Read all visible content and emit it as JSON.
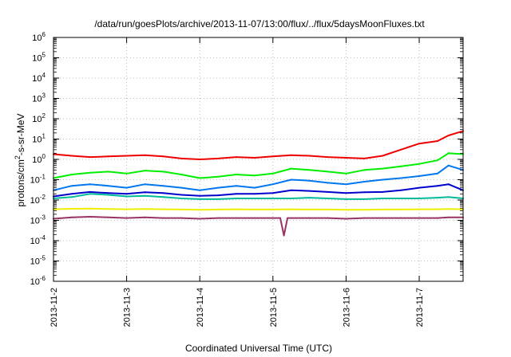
{
  "chart_data": {
    "type": "line",
    "title": "/data/run/goesPlots/archive/2013-11-07/13:00/flux/../flux/5daysMoonFluxes.txt",
    "xlabel": "Coordinated Universal Time (UTC)",
    "ylabel_parts": {
      "base": "protons/cm",
      "sup": "2",
      "rest": "-s-sr-MeV"
    },
    "yscale": "log",
    "ylim": [
      1e-06,
      1000000.0
    ],
    "xlim": [
      0,
      5.6
    ],
    "grid": true,
    "x_ticks": [
      {
        "x": 0,
        "label": "2013-11-2"
      },
      {
        "x": 1,
        "label": "2013-11-3"
      },
      {
        "x": 2,
        "label": "2013-11-4"
      },
      {
        "x": 3,
        "label": "2013-11-5"
      },
      {
        "x": 4,
        "label": "2013-11-6"
      },
      {
        "x": 5,
        "label": "2013-11-7"
      }
    ],
    "y_ticks": [
      {
        "exp": -6,
        "label_base": "10",
        "label_exp": "-6"
      },
      {
        "exp": -5,
        "label_base": "10",
        "label_exp": "-5"
      },
      {
        "exp": -4,
        "label_base": "10",
        "label_exp": "-4"
      },
      {
        "exp": -3,
        "label_base": "10",
        "label_exp": "-3"
      },
      {
        "exp": -2,
        "label_base": "10",
        "label_exp": "-2"
      },
      {
        "exp": -1,
        "label_base": "10",
        "label_exp": "-1"
      },
      {
        "exp": 0,
        "label_base": "10",
        "label_exp": "0"
      },
      {
        "exp": 1,
        "label_base": "10",
        "label_exp": "1"
      },
      {
        "exp": 2,
        "label_base": "10",
        "label_exp": "2"
      },
      {
        "exp": 3,
        "label_base": "10",
        "label_exp": "3"
      },
      {
        "exp": 4,
        "label_base": "10",
        "label_exp": "4"
      },
      {
        "exp": 5,
        "label_base": "10",
        "label_exp": "5"
      },
      {
        "exp": 6,
        "label_base": "10",
        "label_exp": "6"
      }
    ],
    "series": [
      {
        "color": "#ee0000",
        "x": [
          0,
          0.25,
          0.5,
          0.75,
          1.0,
          1.25,
          1.5,
          1.75,
          2.0,
          2.25,
          2.5,
          2.75,
          3.0,
          3.25,
          3.5,
          3.75,
          4.0,
          4.25,
          4.5,
          4.75,
          5.0,
          5.25,
          5.4,
          5.6
        ],
        "y": [
          1.8,
          1.5,
          1.3,
          1.4,
          1.5,
          1.6,
          1.4,
          1.1,
          1.0,
          1.1,
          1.3,
          1.2,
          1.4,
          1.6,
          1.5,
          1.3,
          1.2,
          1.1,
          1.5,
          3.0,
          6.0,
          8.0,
          15,
          25
        ]
      },
      {
        "color": "#00ee00",
        "x": [
          0,
          0.25,
          0.5,
          0.75,
          1.0,
          1.25,
          1.5,
          1.75,
          2.0,
          2.25,
          2.5,
          2.75,
          3.0,
          3.25,
          3.5,
          3.75,
          4.0,
          4.25,
          4.5,
          4.75,
          5.0,
          5.25,
          5.4,
          5.6
        ],
        "y": [
          0.12,
          0.18,
          0.22,
          0.25,
          0.2,
          0.28,
          0.25,
          0.18,
          0.12,
          0.14,
          0.18,
          0.16,
          0.2,
          0.35,
          0.3,
          0.25,
          0.2,
          0.3,
          0.35,
          0.45,
          0.6,
          0.9,
          2.0,
          1.8
        ]
      },
      {
        "color": "#0077ee",
        "x": [
          0,
          0.25,
          0.5,
          0.75,
          1.0,
          1.25,
          1.5,
          1.75,
          2.0,
          2.25,
          2.5,
          2.75,
          3.0,
          3.25,
          3.5,
          3.75,
          4.0,
          4.25,
          4.5,
          4.75,
          5.0,
          5.25,
          5.4,
          5.6
        ],
        "y": [
          0.03,
          0.05,
          0.06,
          0.05,
          0.04,
          0.06,
          0.05,
          0.04,
          0.03,
          0.04,
          0.05,
          0.04,
          0.06,
          0.1,
          0.09,
          0.07,
          0.06,
          0.08,
          0.1,
          0.12,
          0.15,
          0.2,
          0.5,
          0.3
        ]
      },
      {
        "color": "#0000cc",
        "x": [
          0,
          0.25,
          0.5,
          0.75,
          1.0,
          1.25,
          1.5,
          1.75,
          2.0,
          2.25,
          2.5,
          2.75,
          3.0,
          3.25,
          3.5,
          3.75,
          4.0,
          4.25,
          4.5,
          4.75,
          5.0,
          5.25,
          5.4,
          5.6
        ],
        "y": [
          0.015,
          0.02,
          0.025,
          0.022,
          0.02,
          0.024,
          0.022,
          0.018,
          0.016,
          0.017,
          0.02,
          0.02,
          0.022,
          0.03,
          0.028,
          0.025,
          0.022,
          0.024,
          0.025,
          0.03,
          0.04,
          0.05,
          0.06,
          0.03
        ]
      },
      {
        "color": "#00bb99",
        "x": [
          0,
          0.25,
          0.5,
          0.75,
          1.0,
          1.25,
          1.5,
          1.75,
          2.0,
          2.25,
          2.5,
          2.75,
          3.0,
          3.25,
          3.5,
          3.75,
          4.0,
          4.25,
          4.5,
          4.75,
          5.0,
          5.25,
          5.4,
          5.6
        ],
        "y": [
          0.012,
          0.014,
          0.02,
          0.018,
          0.015,
          0.016,
          0.014,
          0.012,
          0.011,
          0.011,
          0.012,
          0.012,
          0.012,
          0.012,
          0.013,
          0.012,
          0.011,
          0.011,
          0.012,
          0.012,
          0.012,
          0.013,
          0.014,
          0.012
        ]
      },
      {
        "color": "#eeee00",
        "x": [
          0,
          0.25,
          0.5,
          0.75,
          1.0,
          1.25,
          1.5,
          1.75,
          2.0,
          2.25,
          2.5,
          2.75,
          3.0,
          3.25,
          3.5,
          3.75,
          4.0,
          4.25,
          4.5,
          4.75,
          5.0,
          5.25,
          5.4,
          5.6
        ],
        "y": [
          0.0035,
          0.0037,
          0.0038,
          0.0036,
          0.0035,
          0.0036,
          0.0035,
          0.0034,
          0.0033,
          0.0034,
          0.0035,
          0.0034,
          0.0034,
          0.0035,
          0.0034,
          0.0034,
          0.0033,
          0.0033,
          0.0034,
          0.0034,
          0.0035,
          0.0035,
          0.0036,
          0.0035
        ]
      },
      {
        "color": "#993366",
        "x": [
          0,
          0.25,
          0.5,
          0.75,
          1.0,
          1.25,
          1.5,
          1.75,
          2.0,
          2.25,
          2.5,
          2.75,
          3.0,
          3.1,
          3.15,
          3.2,
          3.25,
          3.5,
          3.75,
          4.0,
          4.25,
          4.5,
          4.75,
          5.0,
          5.25,
          5.4,
          5.6
        ],
        "y": [
          0.0012,
          0.0014,
          0.0015,
          0.0014,
          0.0013,
          0.0014,
          0.0013,
          0.0013,
          0.0012,
          0.0013,
          0.0013,
          0.0013,
          0.0013,
          0.0013,
          0.00018,
          0.0013,
          0.0013,
          0.0013,
          0.0013,
          0.0012,
          0.0013,
          0.0013,
          0.0013,
          0.0013,
          0.0013,
          0.0014,
          0.0014
        ]
      }
    ]
  }
}
